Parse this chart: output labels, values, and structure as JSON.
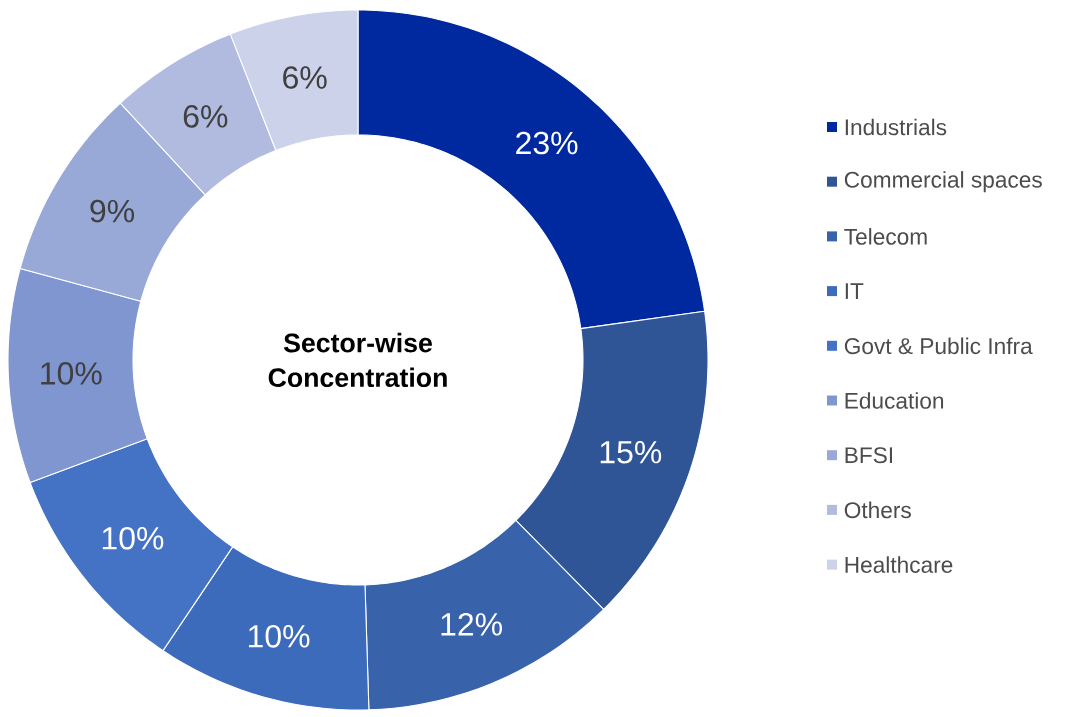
{
  "chart_data": {
    "type": "donut",
    "title": "Sector-wise Concentration",
    "categories": [
      "Industrials",
      "Commercial spaces",
      "Telecom",
      "IT",
      "Govt & Public Infra",
      "Education",
      "BFSI",
      "Others",
      "Healthcare"
    ],
    "values": [
      23,
      15,
      12,
      10,
      10,
      10,
      9,
      6,
      6
    ],
    "value_labels": [
      "23%",
      "15%",
      "12%",
      "10%",
      "10%",
      "10%",
      "9%",
      "6%",
      "6%"
    ],
    "colors": [
      "#0029a0",
      "#2f5597",
      "#3863ab",
      "#3d6bbb",
      "#4472c4",
      "#7f96d0",
      "#98a9d8",
      "#b1bbe0",
      "#ccd2ea"
    ],
    "legend": "right"
  }
}
